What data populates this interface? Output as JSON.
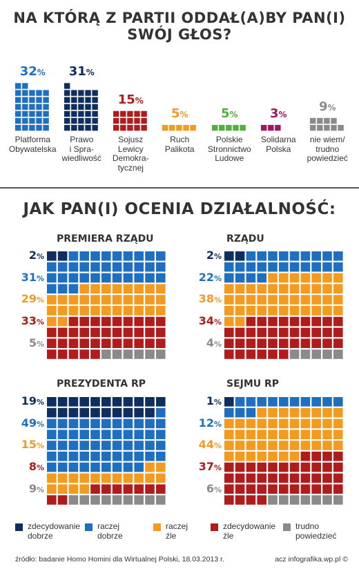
{
  "title1": "NA KTÓRĄ Z PARTII ODDAŁ(A)BY PAN(I) SWÓJ GŁOS?",
  "title2": "JAK PAN(I) OCENIA DZIAŁALNOŚĆ:",
  "colors": {
    "dark_navy": "#0f2d5e",
    "blue": "#1f6fc0",
    "dark_red": "#b01c1c",
    "orange": "#f39a1f",
    "green": "#4fb03a",
    "magenta": "#a3155f",
    "gray": "#8a8a8a"
  },
  "chart_data": [
    {
      "type": "bar",
      "categories": [
        "Platforma Obywatelska",
        "Prawo i Sprawiedliwość",
        "Sojusz Lewicy Demokratycznej",
        "Ruch Palikota",
        "Polskie Stronnictwo Ludowe",
        "Solidarna Polska",
        "nie wiem/ trudno powiedzieć"
      ],
      "values": [
        32,
        31,
        15,
        5,
        5,
        3,
        9
      ],
      "unit": "%",
      "parties": [
        {
          "label_lines": [
            "Platforma",
            "Obywatelska"
          ],
          "value": 32,
          "pct": "32",
          "color": "#1f6fc0"
        },
        {
          "label_lines": [
            "Prawo",
            "i Spra-",
            "wiedliwość"
          ],
          "value": 31,
          "pct": "31",
          "color": "#0f2d5e"
        },
        {
          "label_lines": [
            "Sojusz",
            "Lewicy",
            "Demokra-",
            "tycznej"
          ],
          "value": 15,
          "pct": "15",
          "color": "#b01c1c"
        },
        {
          "label_lines": [
            "Ruch",
            "Palikota"
          ],
          "value": 5,
          "pct": "5",
          "color": "#f39a1f"
        },
        {
          "label_lines": [
            "Polskie",
            "Stronnictwo",
            "Ludowe"
          ],
          "value": 5,
          "pct": "5",
          "color": "#4fb03a"
        },
        {
          "label_lines": [
            "Solidarna",
            "Polska"
          ],
          "value": 3,
          "pct": "3",
          "color": "#a3155f"
        },
        {
          "label_lines": [
            "nie wiem/",
            "trudno",
            "powiedzieć"
          ],
          "value": 9,
          "pct": "9",
          "color": "#8a8a8a"
        }
      ]
    },
    {
      "type": "waffle",
      "title": "PREMIERA RZĄDU",
      "series": [
        {
          "name": "zdecydowanie dobrze",
          "value": 2
        },
        {
          "name": "raczej dobrze",
          "value": 31
        },
        {
          "name": "raczej źle",
          "value": 29
        },
        {
          "name": "zdecydowanie źle",
          "value": 33
        },
        {
          "name": "trudno powiedzieć",
          "value": 5
        }
      ]
    },
    {
      "type": "waffle",
      "title": "RZĄDU",
      "series": [
        {
          "name": "zdecydowanie dobrze",
          "value": 2
        },
        {
          "name": "raczej dobrze",
          "value": 22
        },
        {
          "name": "raczej źle",
          "value": 38
        },
        {
          "name": "zdecydowanie źle",
          "value": 34
        },
        {
          "name": "trudno powiedzieć",
          "value": 4
        }
      ]
    },
    {
      "type": "waffle",
      "title": "PREZYDENTA RP",
      "series": [
        {
          "name": "zdecydowanie dobrze",
          "value": 19
        },
        {
          "name": "raczej dobrze",
          "value": 49
        },
        {
          "name": "raczej źle",
          "value": 15
        },
        {
          "name": "zdecydowanie źle",
          "value": 8
        },
        {
          "name": "trudno powiedzieć",
          "value": 9
        }
      ]
    },
    {
      "type": "waffle",
      "title": "SEJMU RP",
      "series": [
        {
          "name": "zdecydowanie dobrze",
          "value": 1
        },
        {
          "name": "raczej dobrze",
          "value": 12
        },
        {
          "name": "raczej źle",
          "value": 44
        },
        {
          "name": "zdecydowanie źle",
          "value": 37
        },
        {
          "name": "trudno powiedzieć",
          "value": 6
        }
      ]
    }
  ],
  "legend": [
    {
      "lines": [
        "zdecydowanie",
        "dobrze"
      ],
      "color": "#0f2d5e"
    },
    {
      "lines": [
        "raczej",
        "dobrze"
      ],
      "color": "#1f6fc0"
    },
    {
      "lines": [
        "raczej",
        "źle"
      ],
      "color": "#f39a1f"
    },
    {
      "lines": [
        "zdecydowanie",
        "źle"
      ],
      "color": "#b01c1c"
    },
    {
      "lines": [
        "trudno",
        "powiedzieć"
      ],
      "color": "#8a8a8a"
    }
  ],
  "pct_suffix": "%",
  "footer": {
    "source": "źródło: badanie Homo Homini dla Wirtualnej Polski, 18.03.2013 r.",
    "credit": "acz infografika.wp.pl ©"
  }
}
